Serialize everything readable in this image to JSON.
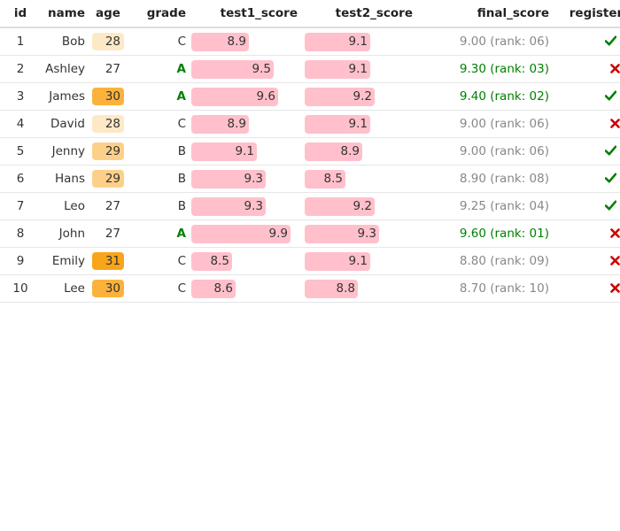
{
  "columns": [
    "id",
    "name",
    "age",
    "grade",
    "test1_score",
    "test2_score",
    "final_score",
    "registered"
  ],
  "colors": {
    "bar": "#ffc0cb",
    "grade_a": "#008000",
    "final_high": "#008000",
    "final_normal": "#888888",
    "registered_yes": "#008000",
    "registered_no": "#cc0000"
  },
  "score_scale_max": 10,
  "rows": [
    {
      "id": "1",
      "name": "Bob",
      "age": "28",
      "age_color": "#fde9c6",
      "grade": "C",
      "grade_highlight": false,
      "test1_score": "8.9",
      "test2_score": "9.1",
      "final_score": "9.00 (rank: 06)",
      "final_highlight": false,
      "registered": "Yes"
    },
    {
      "id": "2",
      "name": "Ashley",
      "age": "27",
      "age_color": "",
      "grade": "A",
      "grade_highlight": true,
      "test1_score": "9.5",
      "test2_score": "9.1",
      "final_score": "9.30 (rank: 03)",
      "final_highlight": true,
      "registered": "No"
    },
    {
      "id": "3",
      "name": "James",
      "age": "30",
      "age_color": "#fbb23c",
      "grade": "A",
      "grade_highlight": true,
      "test1_score": "9.6",
      "test2_score": "9.2",
      "final_score": "9.40 (rank: 02)",
      "final_highlight": true,
      "registered": "Yes"
    },
    {
      "id": "4",
      "name": "David",
      "age": "28",
      "age_color": "#fde9c6",
      "grade": "C",
      "grade_highlight": false,
      "test1_score": "8.9",
      "test2_score": "9.1",
      "final_score": "9.00 (rank: 06)",
      "final_highlight": false,
      "registered": "No"
    },
    {
      "id": "5",
      "name": "Jenny",
      "age": "29",
      "age_color": "#fdd08a",
      "grade": "B",
      "grade_highlight": false,
      "test1_score": "9.1",
      "test2_score": "8.9",
      "final_score": "9.00 (rank: 06)",
      "final_highlight": false,
      "registered": "Yes"
    },
    {
      "id": "6",
      "name": "Hans",
      "age": "29",
      "age_color": "#fdd08a",
      "grade": "B",
      "grade_highlight": false,
      "test1_score": "9.3",
      "test2_score": "8.5",
      "final_score": "8.90 (rank: 08)",
      "final_highlight": false,
      "registered": "Yes"
    },
    {
      "id": "7",
      "name": "Leo",
      "age": "27",
      "age_color": "",
      "grade": "B",
      "grade_highlight": false,
      "test1_score": "9.3",
      "test2_score": "9.2",
      "final_score": "9.25 (rank: 04)",
      "final_highlight": false,
      "registered": "Yes"
    },
    {
      "id": "8",
      "name": "John",
      "age": "27",
      "age_color": "",
      "grade": "A",
      "grade_highlight": true,
      "test1_score": "9.9",
      "test2_score": "9.3",
      "final_score": "9.60 (rank: 01)",
      "final_highlight": true,
      "registered": "No"
    },
    {
      "id": "9",
      "name": "Emily",
      "age": "31",
      "age_color": "#f9a51a",
      "grade": "C",
      "grade_highlight": false,
      "test1_score": "8.5",
      "test2_score": "9.1",
      "final_score": "8.80 (rank: 09)",
      "final_highlight": false,
      "registered": "No"
    },
    {
      "id": "10",
      "name": "Lee",
      "age": "30",
      "age_color": "#fbb23c",
      "grade": "C",
      "grade_highlight": false,
      "test1_score": "8.6",
      "test2_score": "8.8",
      "final_score": "8.70 (rank: 10)",
      "final_highlight": false,
      "registered": "No"
    }
  ]
}
